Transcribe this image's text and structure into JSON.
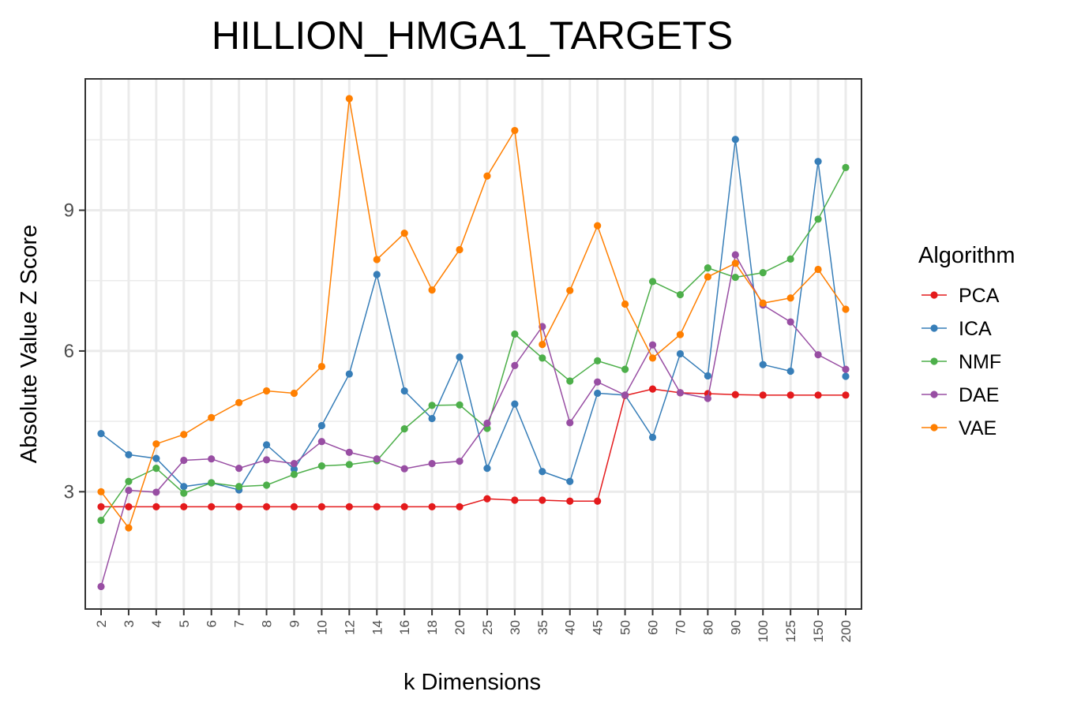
{
  "chart_data": {
    "type": "line",
    "title": "HILLION_HMGA1_TARGETS",
    "xlabel": "k Dimensions",
    "ylabel": "Absolute Value Z Score",
    "categories": [
      "2",
      "3",
      "4",
      "5",
      "6",
      "7",
      "8",
      "9",
      "10",
      "12",
      "14",
      "16",
      "18",
      "20",
      "25",
      "30",
      "35",
      "40",
      "45",
      "50",
      "60",
      "70",
      "80",
      "90",
      "100",
      "125",
      "150",
      "200"
    ],
    "yticks": [
      3,
      6,
      9
    ],
    "ylim": [
      0.5,
      11.8
    ],
    "grid": true,
    "legend": {
      "title": "Algorithm",
      "position": "right"
    },
    "series": [
      {
        "name": "PCA",
        "color": "#e41a1c",
        "values": [
          2.68,
          2.68,
          2.68,
          2.68,
          2.68,
          2.68,
          2.68,
          2.68,
          2.68,
          2.68,
          2.68,
          2.68,
          2.68,
          2.68,
          2.85,
          2.82,
          2.82,
          2.8,
          2.8,
          5.05,
          5.19,
          5.11,
          5.09,
          5.07,
          5.06,
          5.06,
          5.06,
          5.06
        ]
      },
      {
        "name": "ICA",
        "color": "#377eb8",
        "values": [
          4.24,
          3.79,
          3.71,
          3.11,
          3.19,
          3.04,
          4.0,
          3.48,
          4.41,
          5.51,
          7.63,
          5.15,
          4.56,
          5.87,
          3.5,
          4.87,
          3.43,
          3.22,
          5.1,
          5.06,
          4.16,
          5.94,
          5.47,
          10.51,
          5.71,
          5.57,
          10.04,
          5.46
        ]
      },
      {
        "name": "NMF",
        "color": "#4daf4a",
        "values": [
          2.39,
          3.22,
          3.5,
          2.97,
          3.19,
          3.11,
          3.14,
          3.37,
          3.55,
          3.58,
          3.66,
          4.34,
          4.84,
          4.85,
          4.35,
          6.36,
          5.85,
          5.36,
          5.79,
          5.61,
          7.48,
          7.2,
          7.77,
          7.57,
          7.67,
          7.96,
          8.81,
          9.91
        ]
      },
      {
        "name": "DAE",
        "color": "#984ea3",
        "values": [
          0.98,
          3.03,
          2.99,
          3.67,
          3.7,
          3.5,
          3.68,
          3.6,
          4.07,
          3.84,
          3.7,
          3.49,
          3.6,
          3.65,
          4.46,
          5.69,
          6.52,
          4.47,
          5.34,
          5.06,
          6.13,
          5.11,
          4.99,
          8.05,
          6.98,
          6.62,
          5.92,
          5.61
        ]
      },
      {
        "name": "VAE",
        "color": "#ff7f00",
        "values": [
          3.0,
          2.23,
          4.02,
          4.22,
          4.58,
          4.9,
          5.15,
          5.1,
          5.67,
          11.38,
          7.95,
          8.51,
          7.3,
          8.16,
          9.73,
          10.7,
          6.14,
          7.29,
          8.67,
          7.0,
          5.85,
          6.35,
          7.58,
          7.87,
          7.02,
          7.13,
          7.74,
          6.89
        ]
      }
    ]
  }
}
